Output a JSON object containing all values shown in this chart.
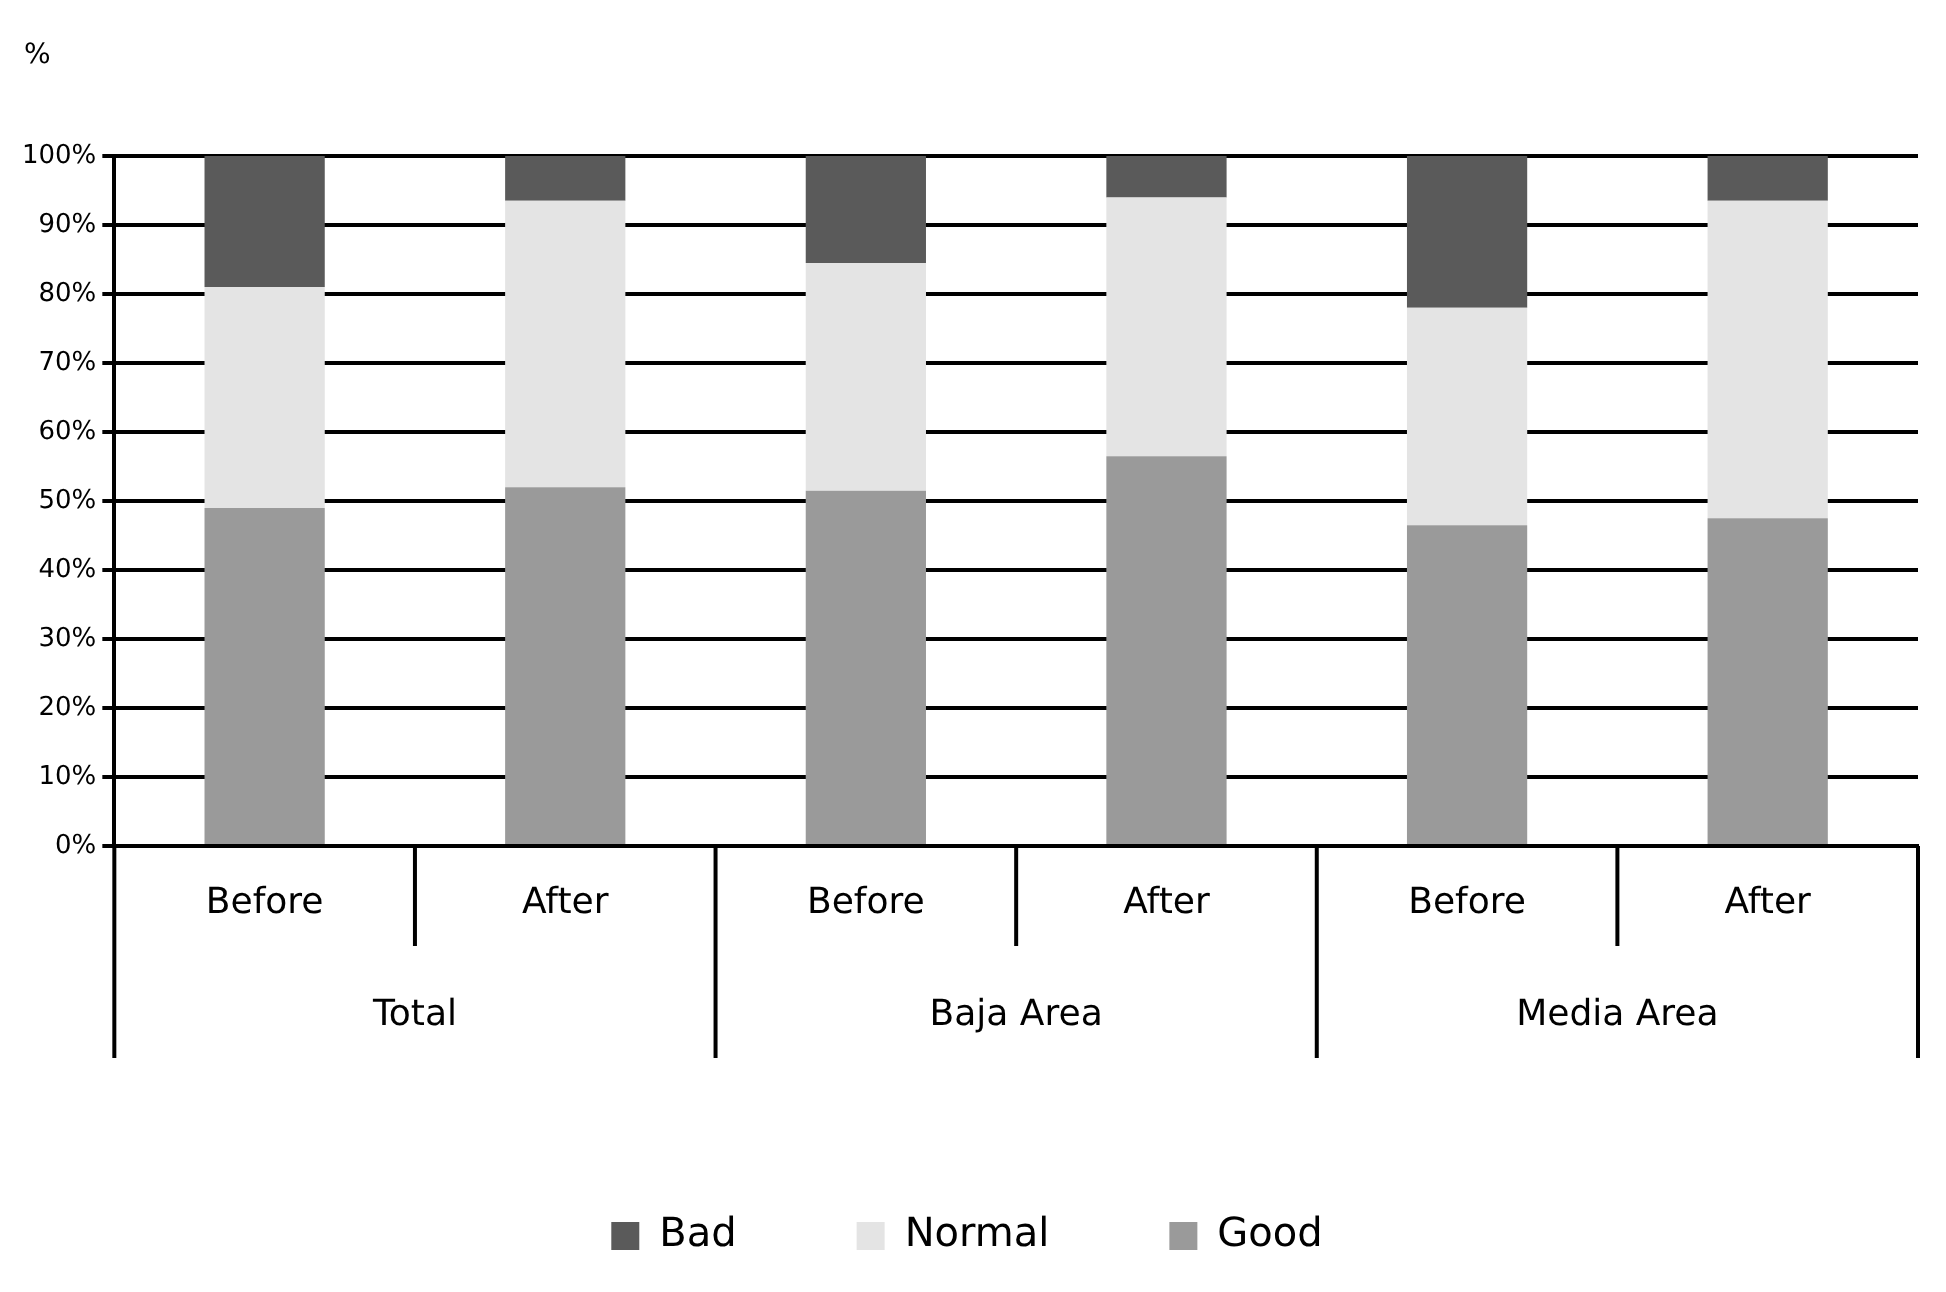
{
  "chart_data": {
    "type": "bar",
    "stacked": true,
    "ylabel": "%",
    "categories": [
      "Before",
      "After",
      "Before",
      "After",
      "Before",
      "After"
    ],
    "series": [
      {
        "name": "Good",
        "color": "#9a9a9a",
        "values": [
          49,
          52,
          51.5,
          56.5,
          46.5,
          47.5
        ]
      },
      {
        "name": "Normal",
        "color": "#e4e4e4",
        "values": [
          32,
          41.5,
          33,
          37.5,
          31.5,
          46
        ]
      },
      {
        "name": "Bad",
        "color": "#5a5a5a",
        "values": [
          19,
          6.5,
          15.5,
          6,
          22,
          6.5
        ]
      }
    ],
    "ylim": [
      0,
      100
    ],
    "yticks": [
      {
        "value": 0,
        "label": "0%"
      },
      {
        "value": 10,
        "label": "10%"
      },
      {
        "value": 20,
        "label": "20%"
      },
      {
        "value": 30,
        "label": "30%"
      },
      {
        "value": 40,
        "label": "40%"
      },
      {
        "value": 50,
        "label": "50%"
      },
      {
        "value": 60,
        "label": "60%"
      },
      {
        "value": 70,
        "label": "70%"
      },
      {
        "value": 80,
        "label": "80%"
      },
      {
        "value": 90,
        "label": "90%"
      },
      {
        "value": 100,
        "label": "100%"
      }
    ],
    "annotations": [
      "Total",
      "Baja Area",
      "Media Area"
    ],
    "grid": "y",
    "legend": "bottom"
  }
}
